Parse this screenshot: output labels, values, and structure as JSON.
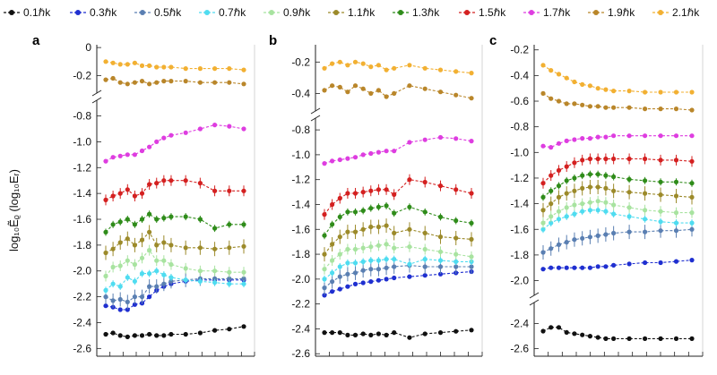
{
  "chart_data": {
    "type": "line",
    "ylabel": "log₁₀Ẽᵨ (log₁₀Eᵣ)",
    "legend": {
      "placement": "top",
      "entries": [
        "0.1ℏk",
        "0.3ℏk",
        "0.5ℏk",
        "0.7ℏk",
        "0.9ℏk",
        "1.1ℏk",
        "1.3ℏk",
        "1.5ℏk",
        "1.7ℏk",
        "1.9ℏk",
        "2.1ℏk"
      ],
      "colors": [
        "#111111",
        "#1f2fd0",
        "#5a7fb2",
        "#4fdcf0",
        "#a8e3a0",
        "#9c8a2a",
        "#2f8c1a",
        "#d42020",
        "#de3de0",
        "#b9862a",
        "#f2b032"
      ]
    },
    "x": [
      1,
      2,
      3,
      4,
      5,
      6,
      7,
      8,
      9,
      10,
      12,
      14,
      16,
      18,
      20
    ],
    "panels": [
      {
        "label": "a",
        "upper_ticks": [
          "0",
          "-0.2"
        ],
        "lower_ticks": [
          "-0.8",
          "-1.0",
          "-1.2",
          "-1.4",
          "-1.6",
          "-1.8",
          "-2.0",
          "-2.2",
          "-2.4",
          "-2.6"
        ],
        "upper_range": [
          -0.3,
          0.02
        ],
        "lower_range": [
          -2.66,
          -0.72
        ],
        "series": [
          {
            "name": "0.1ℏk",
            "values": [
              -2.49,
              -2.48,
              -2.5,
              -2.51,
              -2.5,
              -2.5,
              -2.49,
              -2.5,
              -2.5,
              -2.49,
              -2.49,
              -2.48,
              -2.46,
              -2.45,
              -2.43
            ]
          },
          {
            "name": "0.3ℏk",
            "values": [
              -2.27,
              -2.28,
              -2.3,
              -2.3,
              -2.26,
              -2.25,
              -2.2,
              -2.15,
              -2.12,
              -2.1,
              -2.08,
              -2.07,
              -2.07,
              -2.07,
              -2.07
            ]
          },
          {
            "name": "0.5ℏk",
            "values": [
              -2.2,
              -2.23,
              -2.22,
              -2.24,
              -2.2,
              -2.2,
              -2.12,
              -2.12,
              -2.1,
              -2.08,
              -2.07,
              -2.06,
              -2.06,
              -2.06,
              -2.06
            ]
          },
          {
            "name": "0.7ℏk",
            "values": [
              -2.15,
              -2.1,
              -2.12,
              -2.05,
              -2.08,
              -2.02,
              -2.02,
              -2.0,
              -2.03,
              -2.05,
              -2.07,
              -2.08,
              -2.09,
              -2.1,
              -2.1
            ]
          },
          {
            "name": "0.9ℏk",
            "values": [
              -2.04,
              -1.97,
              -1.96,
              -1.92,
              -1.95,
              -1.9,
              -1.84,
              -1.92,
              -1.92,
              -1.95,
              -1.98,
              -2.0,
              -2.0,
              -2.01,
              -2.01
            ]
          },
          {
            "name": "1.1ℏk",
            "values": [
              -1.86,
              -1.83,
              -1.78,
              -1.75,
              -1.8,
              -1.76,
              -1.7,
              -1.8,
              -1.78,
              -1.8,
              -1.82,
              -1.82,
              -1.83,
              -1.82,
              -1.81
            ]
          },
          {
            "name": "1.3ℏk",
            "values": [
              -1.7,
              -1.64,
              -1.62,
              -1.6,
              -1.64,
              -1.6,
              -1.56,
              -1.6,
              -1.59,
              -1.58,
              -1.58,
              -1.6,
              -1.67,
              -1.64,
              -1.64
            ]
          },
          {
            "name": "1.5ℏk",
            "values": [
              -1.45,
              -1.42,
              -1.4,
              -1.37,
              -1.42,
              -1.4,
              -1.33,
              -1.32,
              -1.3,
              -1.3,
              -1.3,
              -1.32,
              -1.38,
              -1.38,
              -1.38
            ]
          },
          {
            "name": "1.7ℏk",
            "values": [
              -1.15,
              -1.12,
              -1.11,
              -1.1,
              -1.1,
              -1.07,
              -1.04,
              -1.0,
              -0.97,
              -0.95,
              -0.93,
              -0.9,
              -0.87,
              -0.88,
              -0.9
            ]
          },
          {
            "name": "1.9ℏk",
            "values": [
              -0.23,
              -0.22,
              -0.25,
              -0.26,
              -0.25,
              -0.24,
              -0.26,
              -0.25,
              -0.24,
              -0.24,
              -0.24,
              -0.25,
              -0.25,
              -0.25,
              -0.26
            ]
          },
          {
            "name": "2.1ℏk",
            "values": [
              -0.1,
              -0.11,
              -0.12,
              -0.12,
              -0.11,
              -0.13,
              -0.13,
              -0.14,
              -0.14,
              -0.14,
              -0.15,
              -0.15,
              -0.15,
              -0.15,
              -0.16
            ]
          }
        ]
      },
      {
        "label": "b",
        "upper_ticks": [
          "-0.2",
          "-0.4"
        ],
        "lower_ticks": [
          "-0.8",
          "-1.0",
          "-1.2",
          "-1.4",
          "-1.6",
          "-1.8",
          "-2.0",
          "-2.2",
          "-2.4",
          "-2.6"
        ],
        "upper_range": [
          -0.5,
          -0.09
        ],
        "lower_range": [
          -2.62,
          -0.72
        ],
        "series": [
          {
            "name": "0.1ℏk",
            "values": [
              -2.43,
              -2.43,
              -2.43,
              -2.45,
              -2.45,
              -2.44,
              -2.45,
              -2.44,
              -2.45,
              -2.43,
              -2.47,
              -2.44,
              -2.43,
              -2.42,
              -2.41
            ]
          },
          {
            "name": "0.3ℏk",
            "values": [
              -2.13,
              -2.1,
              -2.08,
              -2.06,
              -2.04,
              -2.03,
              -2.02,
              -2.01,
              -2.0,
              -1.99,
              -1.98,
              -1.97,
              -1.96,
              -1.95,
              -1.94
            ]
          },
          {
            "name": "0.5ℏk",
            "values": [
              -2.07,
              -2.02,
              -1.98,
              -1.96,
              -1.95,
              -1.93,
              -1.92,
              -1.92,
              -1.91,
              -1.9,
              -1.89,
              -1.9,
              -1.9,
              -1.9,
              -1.9
            ]
          },
          {
            "name": "0.7ℏk",
            "values": [
              -2.0,
              -1.95,
              -1.9,
              -1.87,
              -1.87,
              -1.86,
              -1.85,
              -1.85,
              -1.84,
              -1.84,
              -1.88,
              -1.84,
              -1.85,
              -1.86,
              -1.86
            ]
          },
          {
            "name": "0.9ℏk",
            "values": [
              -1.92,
              -1.85,
              -1.8,
              -1.76,
              -1.76,
              -1.75,
              -1.74,
              -1.73,
              -1.72,
              -1.75,
              -1.74,
              -1.76,
              -1.78,
              -1.8,
              -1.82
            ]
          },
          {
            "name": "1.1ℏk",
            "values": [
              -1.8,
              -1.72,
              -1.66,
              -1.62,
              -1.62,
              -1.6,
              -1.58,
              -1.58,
              -1.57,
              -1.63,
              -1.6,
              -1.63,
              -1.66,
              -1.67,
              -1.68
            ]
          },
          {
            "name": "1.3ℏk",
            "values": [
              -1.65,
              -1.56,
              -1.5,
              -1.46,
              -1.46,
              -1.45,
              -1.43,
              -1.42,
              -1.41,
              -1.47,
              -1.42,
              -1.46,
              -1.5,
              -1.53,
              -1.55
            ]
          },
          {
            "name": "1.5ℏk",
            "values": [
              -1.48,
              -1.4,
              -1.35,
              -1.31,
              -1.31,
              -1.3,
              -1.29,
              -1.28,
              -1.28,
              -1.32,
              -1.2,
              -1.22,
              -1.25,
              -1.28,
              -1.31
            ]
          },
          {
            "name": "1.7ℏk",
            "values": [
              -1.07,
              -1.05,
              -1.04,
              -1.03,
              -1.02,
              -1.0,
              -0.99,
              -0.98,
              -0.97,
              -0.97,
              -0.9,
              -0.88,
              -0.86,
              -0.87,
              -0.89
            ]
          },
          {
            "name": "1.9ℏk",
            "values": [
              -0.38,
              -0.35,
              -0.36,
              -0.39,
              -0.35,
              -0.37,
              -0.4,
              -0.38,
              -0.42,
              -0.4,
              -0.35,
              -0.37,
              -0.39,
              -0.41,
              -0.43
            ]
          },
          {
            "name": "2.1ℏk",
            "values": [
              -0.24,
              -0.21,
              -0.2,
              -0.22,
              -0.2,
              -0.21,
              -0.23,
              -0.22,
              -0.25,
              -0.24,
              -0.22,
              -0.24,
              -0.25,
              -0.26,
              -0.27
            ]
          }
        ]
      },
      {
        "label": "c",
        "upper_ticks": [
          "-0.2",
          "-0.4",
          "-0.6",
          "-0.8",
          "-1.0",
          "-1.2",
          "-1.4",
          "-1.6",
          "-1.8",
          "-2.0"
        ],
        "lower_ticks": [
          "-2.4",
          "-2.6"
        ],
        "upper_range": [
          -2.08,
          -0.16
        ],
        "lower_range": [
          -2.66,
          -2.26
        ],
        "series": [
          {
            "name": "0.1ℏk",
            "values": [
              -2.46,
              -2.43,
              -2.43,
              -2.47,
              -2.48,
              -2.49,
              -2.5,
              -2.51,
              -2.52,
              -2.52,
              -2.52,
              -2.52,
              -2.52,
              -2.52,
              -2.52
            ]
          },
          {
            "name": "0.3ℏk",
            "values": [
              -1.91,
              -1.9,
              -1.9,
              -1.9,
              -1.9,
              -1.9,
              -1.9,
              -1.89,
              -1.89,
              -1.88,
              -1.87,
              -1.86,
              -1.86,
              -1.85,
              -1.84
            ]
          },
          {
            "name": "0.5ℏk",
            "values": [
              -1.78,
              -1.75,
              -1.72,
              -1.7,
              -1.68,
              -1.67,
              -1.66,
              -1.65,
              -1.64,
              -1.63,
              -1.62,
              -1.62,
              -1.61,
              -1.61,
              -1.6
            ]
          },
          {
            "name": "0.7ℏk",
            "values": [
              -1.6,
              -1.55,
              -1.52,
              -1.5,
              -1.48,
              -1.46,
              -1.45,
              -1.45,
              -1.46,
              -1.48,
              -1.5,
              -1.52,
              -1.54,
              -1.55,
              -1.55
            ]
          },
          {
            "name": "0.9ℏk",
            "values": [
              -1.55,
              -1.5,
              -1.46,
              -1.43,
              -1.41,
              -1.4,
              -1.39,
              -1.38,
              -1.39,
              -1.41,
              -1.43,
              -1.45,
              -1.46,
              -1.47,
              -1.47
            ]
          },
          {
            "name": "1.1ℏk",
            "values": [
              -1.45,
              -1.4,
              -1.35,
              -1.32,
              -1.3,
              -1.28,
              -1.27,
              -1.27,
              -1.28,
              -1.3,
              -1.31,
              -1.32,
              -1.33,
              -1.34,
              -1.35
            ]
          },
          {
            "name": "1.3ℏk",
            "values": [
              -1.35,
              -1.3,
              -1.26,
              -1.22,
              -1.2,
              -1.18,
              -1.17,
              -1.17,
              -1.18,
              -1.19,
              -1.21,
              -1.22,
              -1.23,
              -1.23,
              -1.24
            ]
          },
          {
            "name": "1.5ℏk",
            "values": [
              -1.24,
              -1.18,
              -1.14,
              -1.11,
              -1.08,
              -1.06,
              -1.05,
              -1.05,
              -1.05,
              -1.05,
              -1.05,
              -1.05,
              -1.06,
              -1.06,
              -1.07
            ]
          },
          {
            "name": "1.7ℏk",
            "values": [
              -0.95,
              -0.96,
              -0.93,
              -0.91,
              -0.9,
              -0.89,
              -0.89,
              -0.88,
              -0.88,
              -0.87,
              -0.87,
              -0.87,
              -0.87,
              -0.87,
              -0.87
            ]
          },
          {
            "name": "1.9ℏk",
            "values": [
              -0.54,
              -0.58,
              -0.6,
              -0.62,
              -0.62,
              -0.63,
              -0.64,
              -0.64,
              -0.65,
              -0.65,
              -0.65,
              -0.66,
              -0.66,
              -0.66,
              -0.67
            ]
          },
          {
            "name": "2.1ℏk",
            "values": [
              -0.32,
              -0.36,
              -0.39,
              -0.42,
              -0.45,
              -0.47,
              -0.48,
              -0.5,
              -0.51,
              -0.52,
              -0.52,
              -0.53,
              -0.53,
              -0.53,
              -0.53
            ]
          }
        ]
      }
    ]
  }
}
